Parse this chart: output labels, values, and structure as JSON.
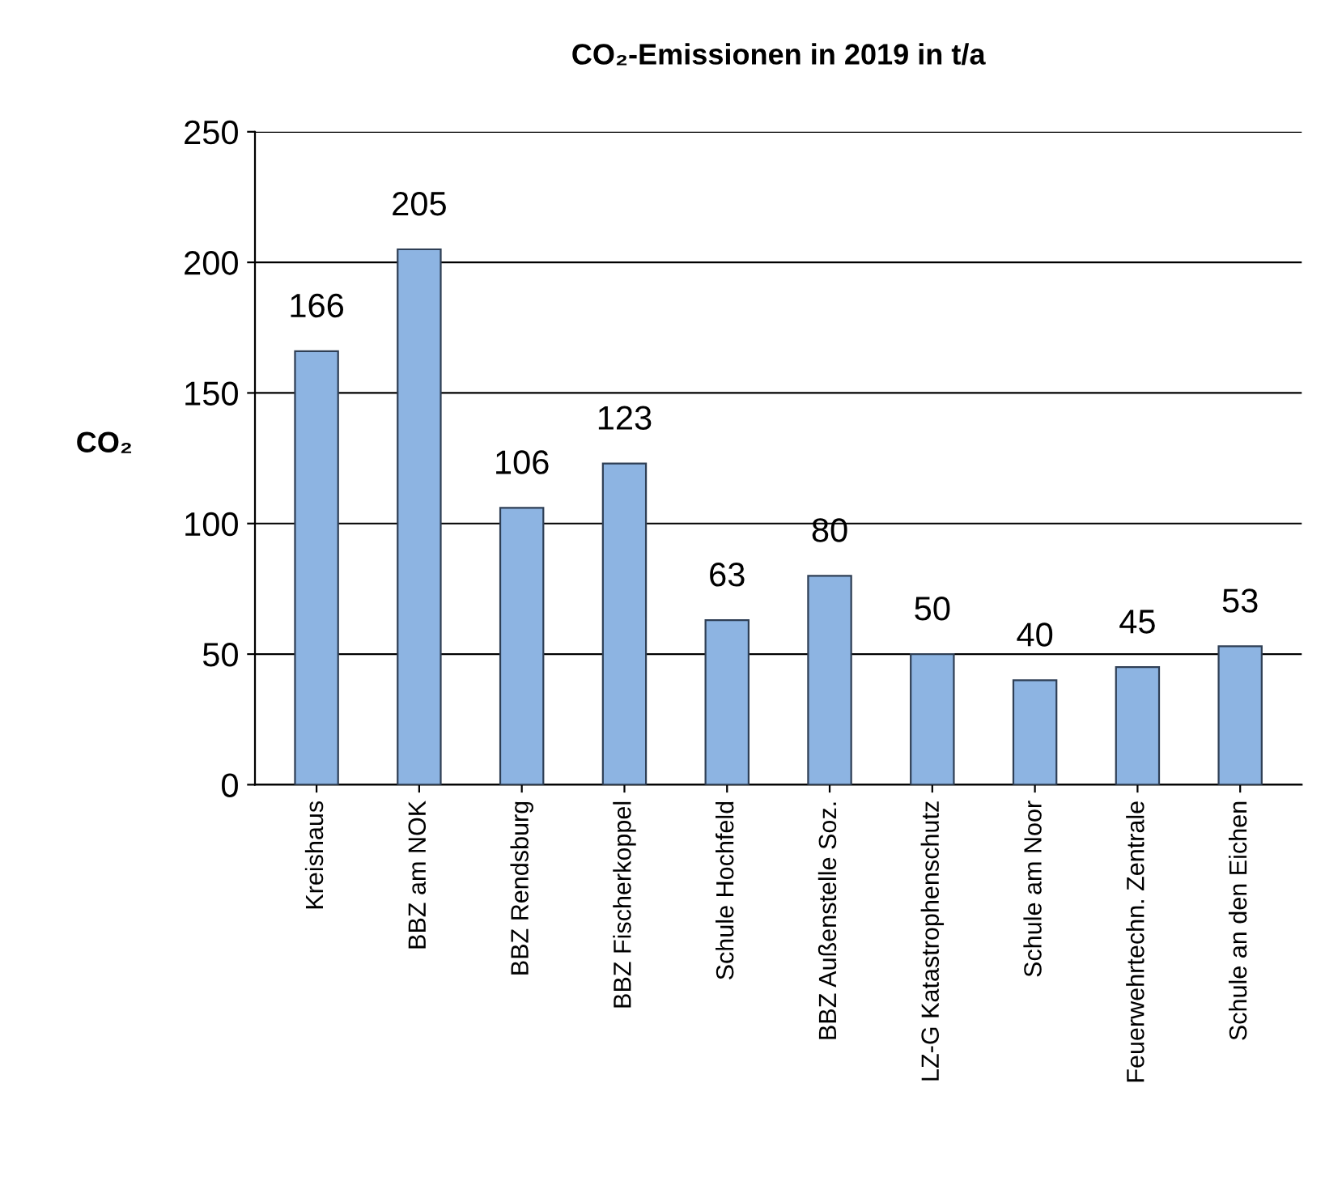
{
  "chart_data": {
    "type": "bar",
    "title": "CO₂-Emissionen in 2019 in t/a",
    "ylabel": "CO₂",
    "categories": [
      "Kreishaus",
      "BBZ am NOK",
      "BBZ Rendsburg",
      "BBZ Fischerkoppel",
      "Schule Hochfeld",
      "BBZ Außenstelle Soz.",
      "LZ-G Katastrophenschutz",
      "Schule am Noor",
      "Feuerwehrtechn. Zentrale",
      "Schule an den Eichen"
    ],
    "values": [
      166,
      205,
      106,
      123,
      63,
      80,
      50,
      40,
      45,
      53
    ],
    "color": "#8db4e2",
    "ylim": [
      0,
      250
    ],
    "yticks": [
      0,
      50,
      100,
      150,
      200,
      250
    ],
    "grid": "y",
    "data_labels": true
  }
}
